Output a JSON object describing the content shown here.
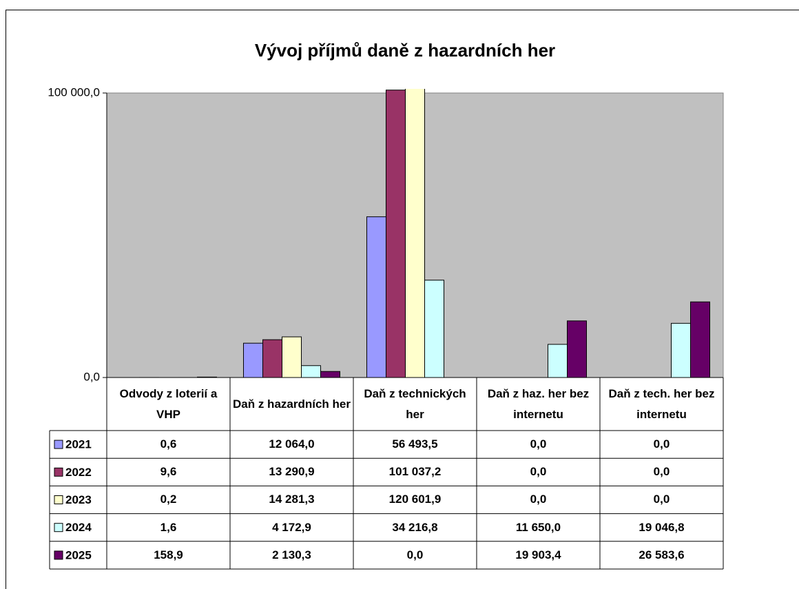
{
  "chart_data": {
    "type": "bar",
    "title": "Vývoj příjmů daně z hazardních her",
    "categories": [
      "Odvody z loterií a VHP",
      "Daň z hazardních her",
      "Daň z technických her",
      "Daň z haz. her bez internetu",
      "Daň z tech. her bez internetu"
    ],
    "series": [
      {
        "name": "2021",
        "color": "#9999ff",
        "values": [
          0.6,
          12064.0,
          56493.5,
          0.0,
          0.0
        ],
        "value_labels": [
          "0,6",
          "12 064,0",
          "56 493,5",
          "0,0",
          "0,0"
        ]
      },
      {
        "name": "2022",
        "color": "#993366",
        "values": [
          9.6,
          13290.9,
          101037.2,
          0.0,
          0.0
        ],
        "value_labels": [
          "9,6",
          "13 290,9",
          "101 037,2",
          "0,0",
          "0,0"
        ]
      },
      {
        "name": "2023",
        "color": "#ffffcc",
        "values": [
          0.2,
          14281.3,
          120601.9,
          0.0,
          0.0
        ],
        "value_labels": [
          "0,2",
          "14 281,3",
          "120 601,9",
          "0,0",
          "0,0"
        ]
      },
      {
        "name": "2024",
        "color": "#ccffff",
        "values": [
          1.6,
          4172.9,
          34216.8,
          11650.0,
          19046.8
        ],
        "value_labels": [
          "1,6",
          "4 172,9",
          "34 216,8",
          "11 650,0",
          "19 046,8"
        ]
      },
      {
        "name": "2025",
        "color": "#660066",
        "values": [
          158.9,
          2130.3,
          0.0,
          19903.4,
          26583.6
        ],
        "value_labels": [
          "158,9",
          "2 130,3",
          "0,0",
          "19 903,4",
          "26 583,6"
        ]
      }
    ],
    "ylim": [
      0,
      100000
    ],
    "yticks": [
      {
        "value": 0,
        "label": "0,0"
      },
      {
        "value": 100000,
        "label": "100 000,0"
      }
    ],
    "plot_background": "#c0c0c0"
  }
}
